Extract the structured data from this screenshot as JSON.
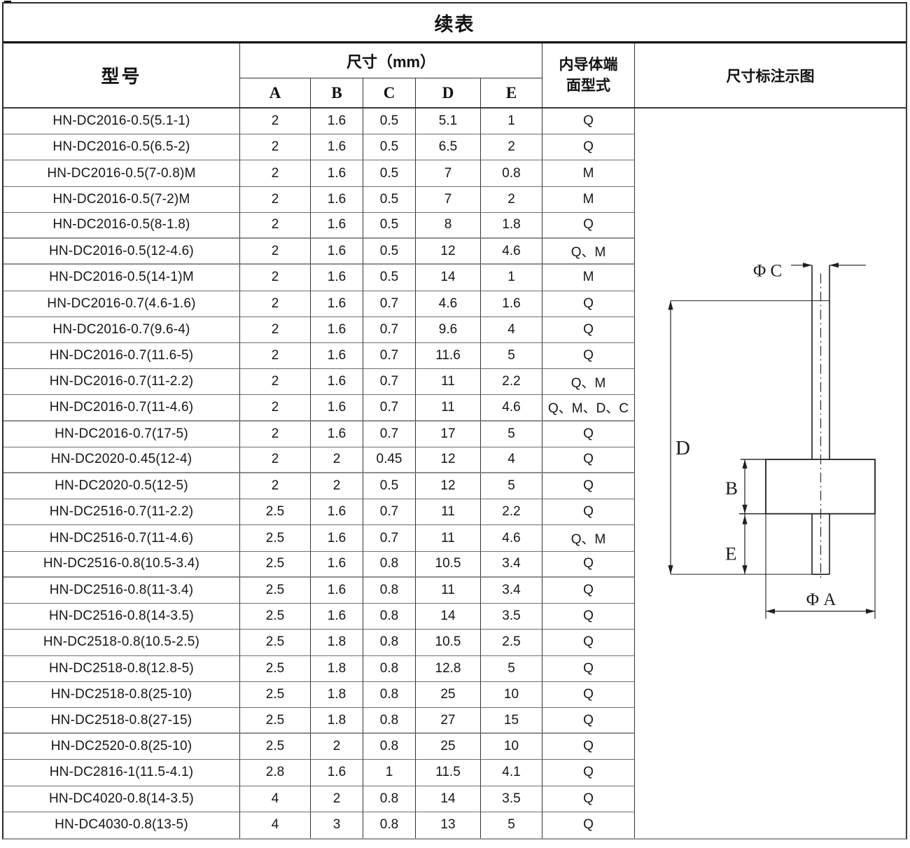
{
  "title": "续表",
  "header": {
    "model": "型号",
    "dims_group": "尺寸（mm）",
    "dims": [
      "A",
      "B",
      "C",
      "D",
      "E"
    ],
    "conductor_line1": "内导体端",
    "conductor_line2": "面型式",
    "diagram": "尺寸标注示图"
  },
  "rows": [
    {
      "model": "HN-DC2016-0.5(5.1-1)",
      "a": "2",
      "b": "1.6",
      "c": "0.5",
      "d": "5.1",
      "e": "1",
      "type": "Q"
    },
    {
      "model": "HN-DC2016-0.5(6.5-2)",
      "a": "2",
      "b": "1.6",
      "c": "0.5",
      "d": "6.5",
      "e": "2",
      "type": "Q"
    },
    {
      "model": "HN-DC2016-0.5(7-0.8)M",
      "a": "2",
      "b": "1.6",
      "c": "0.5",
      "d": "7",
      "e": "0.8",
      "type": "M"
    },
    {
      "model": "HN-DC2016-0.5(7-2)M",
      "a": "2",
      "b": "1.6",
      "c": "0.5",
      "d": "7",
      "e": "2",
      "type": "M"
    },
    {
      "model": "HN-DC2016-0.5(8-1.8)",
      "a": "2",
      "b": "1.6",
      "c": "0.5",
      "d": "8",
      "e": "1.8",
      "type": "Q"
    },
    {
      "model": "HN-DC2016-0.5(12-4.6)",
      "a": "2",
      "b": "1.6",
      "c": "0.5",
      "d": "12",
      "e": "4.6",
      "type": "Q、M"
    },
    {
      "model": "HN-DC2016-0.5(14-1)M",
      "a": "2",
      "b": "1.6",
      "c": "0.5",
      "d": "14",
      "e": "1",
      "type": "M"
    },
    {
      "model": "HN-DC2016-0.7(4.6-1.6)",
      "a": "2",
      "b": "1.6",
      "c": "0.7",
      "d": "4.6",
      "e": "1.6",
      "type": "Q"
    },
    {
      "model": "HN-DC2016-0.7(9.6-4)",
      "a": "2",
      "b": "1.6",
      "c": "0.7",
      "d": "9.6",
      "e": "4",
      "type": "Q"
    },
    {
      "model": "HN-DC2016-0.7(11.6-5)",
      "a": "2",
      "b": "1.6",
      "c": "0.7",
      "d": "11.6",
      "e": "5",
      "type": "Q"
    },
    {
      "model": "HN-DC2016-0.7(11-2.2)",
      "a": "2",
      "b": "1.6",
      "c": "0.7",
      "d": "11",
      "e": "2.2",
      "type": "Q、M"
    },
    {
      "model": "HN-DC2016-0.7(11-4.6)",
      "a": "2",
      "b": "1.6",
      "c": "0.7",
      "d": "11",
      "e": "4.6",
      "type": "Q、M、D、C"
    },
    {
      "model": "HN-DC2016-0.7(17-5)",
      "a": "2",
      "b": "1.6",
      "c": "0.7",
      "d": "17",
      "e": "5",
      "type": "Q"
    },
    {
      "model": "HN-DC2020-0.45(12-4)",
      "a": "2",
      "b": "2",
      "c": "0.45",
      "d": "12",
      "e": "4",
      "type": "Q"
    },
    {
      "model": "HN-DC2020-0.5(12-5)",
      "a": "2",
      "b": "2",
      "c": "0.5",
      "d": "12",
      "e": "5",
      "type": "Q"
    },
    {
      "model": "HN-DC2516-0.7(11-2.2)",
      "a": "2.5",
      "b": "1.6",
      "c": "0.7",
      "d": "11",
      "e": "2.2",
      "type": "Q"
    },
    {
      "model": "HN-DC2516-0.7(11-4.6)",
      "a": "2.5",
      "b": "1.6",
      "c": "0.7",
      "d": "11",
      "e": "4.6",
      "type": "Q、M"
    },
    {
      "model": "HN-DC2516-0.8(10.5-3.4)",
      "a": "2.5",
      "b": "1.6",
      "c": "0.8",
      "d": "10.5",
      "e": "3.4",
      "type": "Q"
    },
    {
      "model": "HN-DC2516-0.8(11-3.4)",
      "a": "2.5",
      "b": "1.6",
      "c": "0.8",
      "d": "11",
      "e": "3.4",
      "type": "Q"
    },
    {
      "model": "HN-DC2516-0.8(14-3.5)",
      "a": "2.5",
      "b": "1.6",
      "c": "0.8",
      "d": "14",
      "e": "3.5",
      "type": "Q"
    },
    {
      "model": "HN-DC2518-0.8(10.5-2.5)",
      "a": "2.5",
      "b": "1.8",
      "c": "0.8",
      "d": "10.5",
      "e": "2.5",
      "type": "Q"
    },
    {
      "model": "HN-DC2518-0.8(12.8-5)",
      "a": "2.5",
      "b": "1.8",
      "c": "0.8",
      "d": "12.8",
      "e": "5",
      "type": "Q"
    },
    {
      "model": "HN-DC2518-0.8(25-10)",
      "a": "2.5",
      "b": "1.8",
      "c": "0.8",
      "d": "25",
      "e": "10",
      "type": "Q"
    },
    {
      "model": "HN-DC2518-0.8(27-15)",
      "a": "2.5",
      "b": "1.8",
      "c": "0.8",
      "d": "27",
      "e": "15",
      "type": "Q"
    },
    {
      "model": "HN-DC2520-0.8(25-10)",
      "a": "2.5",
      "b": "2",
      "c": "0.8",
      "d": "25",
      "e": "10",
      "type": "Q"
    },
    {
      "model": "HN-DC2816-1(11.5-4.1)",
      "a": "2.8",
      "b": "1.6",
      "c": "1",
      "d": "11.5",
      "e": "4.1",
      "type": "Q"
    },
    {
      "model": "HN-DC4020-0.8(14-3.5)",
      "a": "4",
      "b": "2",
      "c": "0.8",
      "d": "14",
      "e": "3.5",
      "type": "Q"
    },
    {
      "model": "HN-DC4030-0.8(13-5)",
      "a": "4",
      "b": "3",
      "c": "0.8",
      "d": "13",
      "e": "5",
      "type": "Q"
    }
  ],
  "diagram_labels": {
    "phi_c": "Φ C",
    "d": "D",
    "b": "B",
    "e": "E",
    "phi_a": "Φ A"
  },
  "colors": {
    "line": "#1f1f1f",
    "grid_vertical": "#333333",
    "grid_horizontal": "#6e6e6e",
    "outer_border": "#2a2a2a"
  }
}
